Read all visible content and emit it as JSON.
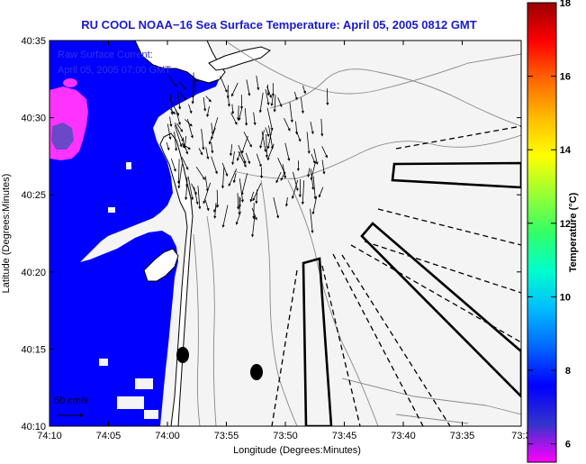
{
  "title": "RU COOL  NOAA−16  Sea Surface Temperature:  April 05, 2005 0812 GMT",
  "overlay": {
    "line1": "Raw Surface Current:",
    "line2": "April 05, 2005 07:00 GMT",
    "scale_label": "50 cm/s"
  },
  "axes": {
    "xlabel": "Longitude (Degrees:Minutes)",
    "ylabel": "Latitude (Degrees:Minutes)",
    "x_ticks": [
      "74:10",
      "74:05",
      "74:00",
      "73:55",
      "73:50",
      "73:45",
      "73:40",
      "73:35",
      "73:3"
    ],
    "y_ticks": [
      "40:35",
      "40:30",
      "40:25",
      "40:20",
      "40:15",
      "40:10"
    ]
  },
  "colorbar": {
    "label": "Temperature (°C)",
    "ticks": [
      6,
      8,
      10,
      12,
      14,
      16,
      18
    ],
    "range": [
      5.5,
      18
    ],
    "colors": [
      "#ff00ff",
      "#3333cc",
      "#0000ff",
      "#0066ff",
      "#00bbff",
      "#00ffcc",
      "#33ff66",
      "#99ff33",
      "#ffff00",
      "#ffbb00",
      "#ff6600",
      "#ff0000",
      "#990000"
    ]
  },
  "colors": {
    "water": "#0000ff",
    "cloud": "#f4f4f4",
    "warm": "#ff33ff",
    "land": "#ffffff",
    "title": "#1a1acc"
  }
}
